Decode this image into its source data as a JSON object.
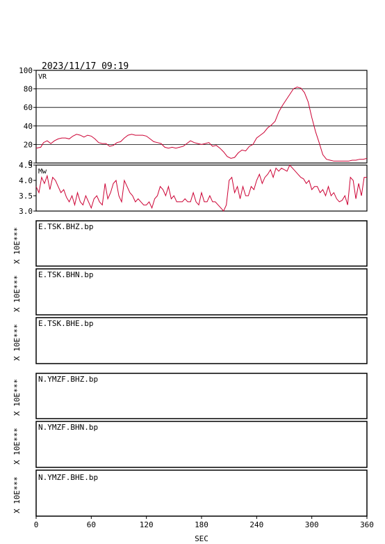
{
  "header": {
    "timestamp": "2023/11/17  09:19"
  },
  "colors": {
    "trace": "#cc0033",
    "frame": "#000000",
    "grid": "#000000"
  },
  "chart_data": [
    {
      "type": "line",
      "label": "VR",
      "ylim": [
        0,
        100
      ],
      "yticks": [
        "0",
        "20",
        "40",
        "60",
        "80",
        "100"
      ],
      "grid": true,
      "x": [
        0,
        5,
        8,
        12,
        16,
        20,
        24,
        28,
        32,
        36,
        40,
        44,
        48,
        52,
        56,
        60,
        64,
        68,
        72,
        76,
        80,
        84,
        88,
        92,
        96,
        100,
        104,
        108,
        112,
        116,
        120,
        124,
        128,
        132,
        136,
        140,
        144,
        148,
        152,
        156,
        160,
        164,
        168,
        172,
        176,
        180,
        184,
        188,
        192,
        196,
        200,
        204,
        208,
        212,
        216,
        220,
        224,
        228,
        232,
        236,
        240,
        244,
        248,
        252,
        256,
        260,
        264,
        268,
        272,
        276,
        280,
        284,
        288,
        292,
        296,
        300,
        304,
        308,
        312,
        316,
        320,
        324,
        328,
        332,
        336,
        340,
        344,
        348,
        352,
        356,
        360
      ],
      "values": [
        16,
        17,
        22,
        24,
        21,
        24,
        26,
        27,
        27,
        26,
        29,
        31,
        30,
        28,
        30,
        29,
        26,
        22,
        21,
        21,
        18,
        19,
        22,
        23,
        27,
        30,
        31,
        30,
        30,
        30,
        29,
        26,
        23,
        22,
        21,
        17,
        16,
        17,
        16,
        17,
        18,
        21,
        24,
        22,
        21,
        20,
        21,
        22,
        18,
        19,
        16,
        12,
        7,
        5,
        6,
        11,
        14,
        13,
        18,
        20,
        27,
        30,
        33,
        38,
        41,
        45,
        55,
        62,
        68,
        74,
        80,
        82,
        81,
        76,
        66,
        49,
        34,
        22,
        9,
        4,
        3,
        2,
        2,
        2,
        2,
        2,
        3,
        3,
        4,
        4,
        5
      ]
    },
    {
      "type": "line",
      "label": "Mw",
      "ylim": [
        3.0,
        4.5
      ],
      "yticks": [
        "3.0",
        "3.5",
        "4.0",
        "4.5"
      ],
      "grid": false,
      "x": [
        0,
        3,
        6,
        9,
        12,
        15,
        18,
        21,
        24,
        27,
        30,
        33,
        36,
        39,
        42,
        45,
        48,
        51,
        54,
        57,
        60,
        63,
        66,
        69,
        72,
        75,
        78,
        81,
        84,
        87,
        90,
        93,
        96,
        99,
        102,
        105,
        108,
        111,
        114,
        117,
        120,
        123,
        126,
        129,
        132,
        135,
        138,
        141,
        144,
        147,
        150,
        153,
        156,
        159,
        162,
        165,
        168,
        171,
        174,
        177,
        180,
        183,
        186,
        189,
        192,
        195,
        198,
        201,
        204,
        207,
        210,
        213,
        216,
        219,
        222,
        225,
        228,
        231,
        234,
        237,
        240,
        243,
        246,
        249,
        252,
        255,
        258,
        261,
        264,
        267,
        270,
        273,
        276,
        279,
        282,
        285,
        288,
        291,
        294,
        297,
        300,
        303,
        306,
        309,
        312,
        315,
        318,
        321,
        324,
        327,
        330,
        333,
        336,
        339,
        342,
        345,
        348,
        351,
        354,
        357,
        360
      ],
      "values": [
        3.8,
        3.6,
        4.1,
        3.9,
        4.15,
        3.7,
        4.1,
        4.0,
        3.8,
        3.6,
        3.7,
        3.45,
        3.3,
        3.5,
        3.2,
        3.6,
        3.3,
        3.2,
        3.5,
        3.3,
        3.1,
        3.4,
        3.5,
        3.3,
        3.2,
        3.9,
        3.4,
        3.6,
        3.9,
        4.0,
        3.5,
        3.3,
        4.0,
        3.8,
        3.6,
        3.5,
        3.3,
        3.4,
        3.3,
        3.2,
        3.2,
        3.3,
        3.1,
        3.4,
        3.5,
        3.8,
        3.7,
        3.5,
        3.8,
        3.4,
        3.5,
        3.3,
        3.3,
        3.3,
        3.4,
        3.3,
        3.3,
        3.6,
        3.3,
        3.2,
        3.6,
        3.3,
        3.3,
        3.5,
        3.3,
        3.3,
        3.2,
        3.1,
        3.0,
        3.2,
        4.0,
        4.1,
        3.6,
        3.8,
        3.4,
        3.8,
        3.5,
        3.5,
        3.8,
        3.7,
        4.0,
        4.2,
        3.9,
        4.1,
        4.2,
        4.35,
        4.1,
        4.4,
        4.3,
        4.4,
        4.35,
        4.3,
        4.5,
        4.4,
        4.3,
        4.2,
        4.1,
        4.05,
        3.9,
        4.0,
        3.7,
        3.8,
        3.8,
        3.6,
        3.7,
        3.5,
        3.8,
        3.5,
        3.6,
        3.4,
        3.3,
        3.35,
        3.5,
        3.2,
        4.1,
        4.0,
        3.4,
        3.9,
        3.5,
        4.1,
        4.1
      ]
    }
  ],
  "waveform_panels": [
    {
      "channel": "E.TSK.BHZ.bp",
      "scale_label": "X 10E***"
    },
    {
      "channel": "E.TSK.BHN.bp",
      "scale_label": "X 10E***"
    },
    {
      "channel": "E.TSK.BHE.bp",
      "scale_label": "X 10E***"
    },
    {
      "channel": "N.YMZF.BHZ.bp",
      "scale_label": "X 10E***"
    },
    {
      "channel": "N.YMZF.BHN.bp",
      "scale_label": "X 10E***"
    },
    {
      "channel": "N.YMZF.BHE.bp",
      "scale_label": "X 10E***"
    }
  ],
  "x_axis": {
    "xlim": [
      0,
      360
    ],
    "ticks": [
      "0",
      "60",
      "120",
      "180",
      "240",
      "300",
      "360"
    ],
    "label": "SEC"
  }
}
